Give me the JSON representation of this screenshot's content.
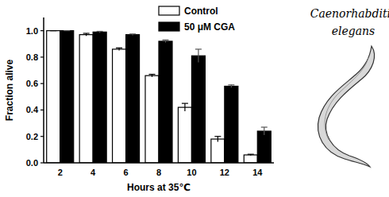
{
  "chart_data": {
    "type": "bar",
    "x_label": "Hours at 35℃",
    "y_label": "Fraction alive",
    "categories": [
      "2",
      "4",
      "6",
      "8",
      "10",
      "12",
      "14"
    ],
    "series": [
      {
        "name": "Control",
        "color": "#ffffff",
        "values": [
          1.0,
          0.97,
          0.86,
          0.66,
          0.42,
          0.18,
          0.06
        ],
        "errors": [
          0,
          0.01,
          0.01,
          0.01,
          0.03,
          0.02,
          0.005
        ]
      },
      {
        "name": "50 μM CGA",
        "color": "#000000",
        "values": [
          1.0,
          0.99,
          0.97,
          0.92,
          0.81,
          0.58,
          0.24
        ],
        "errors": [
          0,
          0.005,
          0.005,
          0.01,
          0.05,
          0.01,
          0.03
        ]
      }
    ],
    "ylim": [
      0,
      1.1
    ],
    "yticks": [
      {
        "value": 0,
        "label": "0.0"
      },
      {
        "value": 0.2,
        "label": "0.2"
      },
      {
        "value": 0.4,
        "label": "0.4"
      },
      {
        "value": 0.6,
        "label": "0.6"
      },
      {
        "value": 0.8,
        "label": "0.8"
      },
      {
        "value": 1.0,
        "label": "1.0"
      }
    ],
    "legend": "top",
    "grid": false,
    "annotations": [
      "Caenorhabditis",
      "elegans"
    ]
  }
}
